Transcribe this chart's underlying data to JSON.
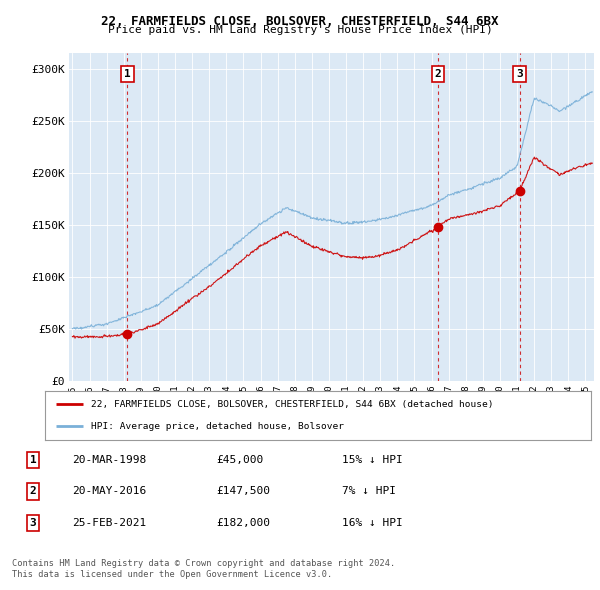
{
  "title_line1": "22, FARMFIELDS CLOSE, BOLSOVER, CHESTERFIELD, S44 6BX",
  "title_line2": "Price paid vs. HM Land Registry's House Price Index (HPI)",
  "hpi_color": "#7ab0d8",
  "price_color": "#cc0000",
  "ylabel_ticks": [
    "£0",
    "£50K",
    "£100K",
    "£150K",
    "£200K",
    "£250K",
    "£300K"
  ],
  "ytick_values": [
    0,
    50000,
    100000,
    150000,
    200000,
    250000,
    300000
  ],
  "ylim": [
    0,
    315000
  ],
  "xlim_start": 1994.8,
  "xlim_end": 2025.5,
  "purchases": [
    {
      "date_decimal": 1998.22,
      "price": 45000,
      "label": "1"
    },
    {
      "date_decimal": 2016.38,
      "price": 147500,
      "label": "2"
    },
    {
      "date_decimal": 2021.15,
      "price": 182000,
      "label": "3"
    }
  ],
  "legend_entry1": "22, FARMFIELDS CLOSE, BOLSOVER, CHESTERFIELD, S44 6BX (detached house)",
  "legend_entry2": "HPI: Average price, detached house, Bolsover",
  "table_rows": [
    [
      "1",
      "20-MAR-1998",
      "£45,000",
      "15% ↓ HPI"
    ],
    [
      "2",
      "20-MAY-2016",
      "£147,500",
      "7% ↓ HPI"
    ],
    [
      "3",
      "25-FEB-2021",
      "£182,000",
      "16% ↓ HPI"
    ]
  ],
  "footnote1": "Contains HM Land Registry data © Crown copyright and database right 2024.",
  "footnote2": "This data is licensed under the Open Government Licence v3.0.",
  "background_color": "#ffffff",
  "chart_bg_color": "#dce9f5",
  "grid_color": "#ffffff",
  "xtick_years": [
    1995,
    1996,
    1997,
    1998,
    1999,
    2000,
    2001,
    2002,
    2003,
    2004,
    2005,
    2006,
    2007,
    2008,
    2009,
    2010,
    2011,
    2012,
    2013,
    2014,
    2015,
    2016,
    2017,
    2018,
    2019,
    2020,
    2021,
    2022,
    2023,
    2024,
    2025
  ]
}
